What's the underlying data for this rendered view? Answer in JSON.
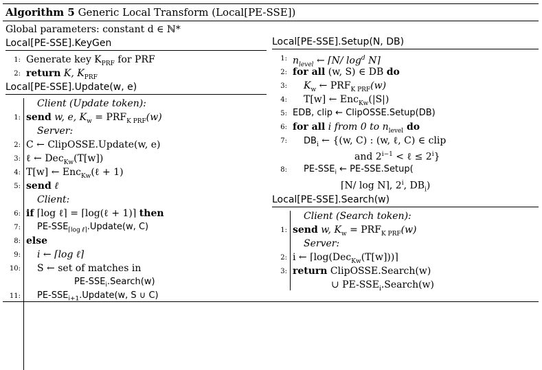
{
  "title_bold": "Algorithm 5",
  "title_text": "Generic Local Transform (Local[PE-SSE])",
  "global_params": "Global parameters: constant d ∈ ℕ*",
  "keygen": {
    "header": "Local[PE-SSE].KeyGen",
    "lines": [
      {
        "num": "1:",
        "text": "Generate key K",
        "sub": "PRF",
        "tail": " for PRF"
      },
      {
        "num": "2:",
        "kw": "return",
        "text": " K, K",
        "sub": "PRF"
      }
    ]
  },
  "update": {
    "header": "Local[PE-SSE].Update(w, e)",
    "client_label": "Client (Update token):",
    "l1": {
      "num": "1:",
      "kw": "send",
      "text": " w, e, K",
      "sub": "w",
      "tail": " = PRF",
      "sub2": "K PRF",
      "tail2": "(w)"
    },
    "server_label": "Server:",
    "l2": {
      "num": "2:",
      "text": "C ← ClipOSSE.Update(w, e)"
    },
    "l3": {
      "num": "3:",
      "text": "ℓ ← Dec",
      "sub": "Kw",
      "tail": "(T[w])"
    },
    "l4": {
      "num": "4:",
      "text": "T[w] ← Enc",
      "sub": "Kw",
      "tail": "(ℓ + 1)"
    },
    "l5": {
      "num": "5:",
      "kw": "send",
      "text": " ℓ"
    },
    "client2_label": "Client:",
    "l6": {
      "num": "6:",
      "kw": "if",
      "text": " ⌈log ℓ⌉ = ⌈log(ℓ + 1)⌉ ",
      "kw2": "then"
    },
    "l7": {
      "num": "7:",
      "text": "PE-SSE",
      "sub": "⌈log ℓ⌉",
      "tail": ".Update(w, C)"
    },
    "l8": {
      "num": "8:",
      "kw": "else"
    },
    "l9": {
      "num": "9:",
      "text": "i ← ⌈log ℓ⌉"
    },
    "l10": {
      "num": "10:",
      "text": "S ← set of matches in"
    },
    "l10b": {
      "text": "PE-SSE",
      "sub": "i",
      "tail": ".Search(w)"
    },
    "l11": {
      "num": "11:",
      "text": "PE-SSE",
      "sub": "i+1",
      "tail": ".Update(w, S ∪ C)"
    }
  },
  "setup": {
    "header": "Local[PE-SSE].Setup(N, DB)",
    "l1": {
      "num": "1:",
      "text": "n",
      "sub": "level",
      "tail": " ← ⌈N/ log",
      "sup": "d",
      "tail2": " N⌉"
    },
    "l2": {
      "num": "2:",
      "kw": "for all",
      "text": " (w, S) ∈ DB ",
      "kw2": "do"
    },
    "l3": {
      "num": "3:",
      "text": "K",
      "sub": "w",
      "tail": " ← PRF",
      "sub2": "K PRF",
      "tail2": "(w)"
    },
    "l4": {
      "num": "4:",
      "text": "T[w] ← Enc",
      "sub": "Kw",
      "tail": "(|S|)"
    },
    "l5": {
      "num": "5:",
      "text": "EDB, clip ← ClipOSSE.Setup(DB)"
    },
    "l6": {
      "num": "6:",
      "kw": "for all",
      "text": " i from 0 to n",
      "sub": "level",
      "kw2": " do"
    },
    "l7": {
      "num": "7:",
      "text": "DB",
      "sub": "i",
      "tail": " ← {(w, C) : (w, ℓ, C) ∈ clip"
    },
    "l7b": {
      "text": "and 2",
      "sup": "i−1",
      "tail": " < ℓ ≤ 2",
      "sup2": "i",
      "tail2": "}"
    },
    "l8": {
      "num": "8:",
      "text": "PE-SSE",
      "sub": "i",
      "tail": " ← PE-SSE.Setup("
    },
    "l8b": {
      "text": "⌈N/ log N⌉, 2",
      "sup": "i",
      "tail": ", DB",
      "sub": "i",
      "tail2": ")"
    }
  },
  "search": {
    "header": "Local[PE-SSE].Search(w)",
    "client_label": "Client (Search token):",
    "l1": {
      "num": "1:",
      "kw": "send",
      "text": " w, K",
      "sub": "w",
      "tail": " = PRF",
      "sub2": "K PRF",
      "tail2": "(w)"
    },
    "server_label": "Server:",
    "l2": {
      "num": "2:",
      "text": "i ← ⌈log(Dec",
      "sub": "Kw",
      "tail": "(T[w]))⌉"
    },
    "l3": {
      "num": "3:",
      "kw": "return",
      "text": " ClipOSSE.Search(w)"
    },
    "l3b": {
      "text": "∪ PE-SSE",
      "sub": "i",
      "tail": ".Search(w)"
    }
  }
}
